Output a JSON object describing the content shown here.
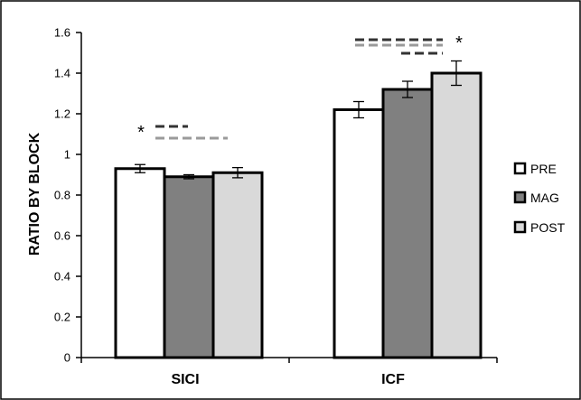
{
  "chart_data": {
    "type": "bar",
    "title": "",
    "xlabel": "",
    "ylabel": "RATIO BY BLOCK",
    "ylim": [
      0,
      1.6
    ],
    "yticks": [
      "0",
      "0.2",
      "0.4",
      "0.6",
      "0.8",
      "1",
      "1.2",
      "1.4",
      "1.6"
    ],
    "categories": [
      "SICI",
      "ICF"
    ],
    "series": [
      {
        "name": "PRE",
        "values": [
          0.93,
          1.22
        ],
        "errors": [
          0.02,
          0.04
        ],
        "color": "#ffffff"
      },
      {
        "name": "MAG",
        "values": [
          0.89,
          1.32
        ],
        "errors": [
          0.01,
          0.04
        ],
        "color": "#808080"
      },
      {
        "name": "POST",
        "values": [
          0.91,
          1.4
        ],
        "errors": [
          0.025,
          0.06
        ],
        "color": "#d9d9d9"
      }
    ],
    "legend_position": "right",
    "grid": false,
    "annotations": [
      {
        "text": "*",
        "category": "SICI",
        "value": 1.16,
        "side": "left"
      },
      {
        "text": "*",
        "category": "ICF",
        "value": 1.53,
        "side": "right"
      }
    ]
  }
}
